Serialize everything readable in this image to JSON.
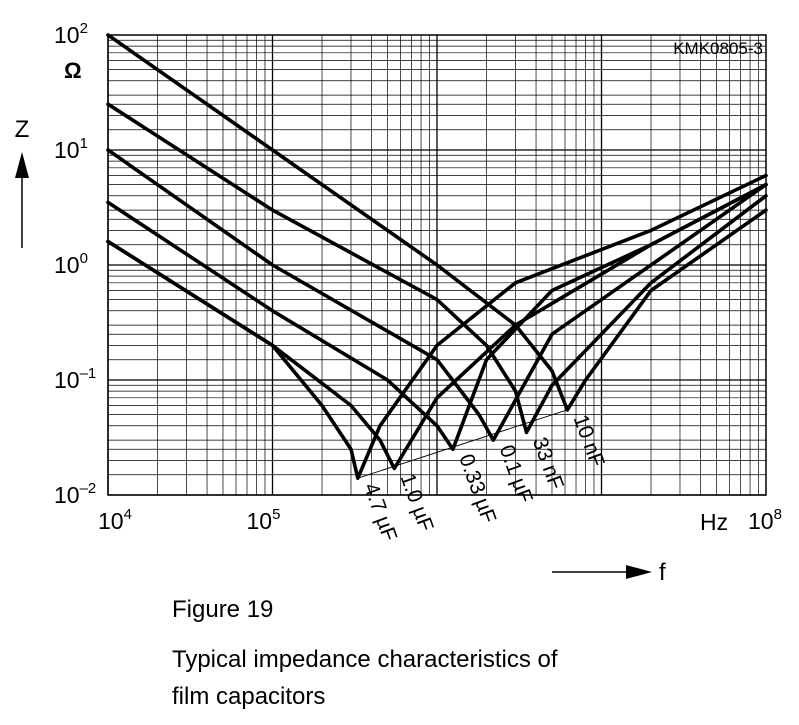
{
  "code": "KMK0805-3",
  "figure_number": "Figure 19",
  "figure_title_lines": [
    "Typical impedance characteristics of",
    "film capacitors"
  ],
  "chart_data": {
    "type": "line",
    "xscale": "log",
    "yscale": "log",
    "xlim": [
      10000,
      100000000
    ],
    "ylim": [
      0.01,
      100
    ],
    "x_unit": "Hz",
    "y_unit": "Ω",
    "ylabel": "Z",
    "xlabel": "f",
    "grid": true,
    "x_ticks": [
      {
        "base": "10",
        "exp": "4"
      },
      {
        "base": "10",
        "exp": "5"
      },
      {
        "base": "10",
        "exp": "8"
      }
    ],
    "y_ticks": [
      {
        "base": "10",
        "exp": "2"
      },
      {
        "base": "10",
        "exp": "1"
      },
      {
        "base": "10",
        "exp": "0"
      },
      {
        "base": "10",
        "exp": "–1"
      },
      {
        "base": "10",
        "exp": "–2"
      }
    ],
    "series": [
      {
        "name": "10 nF",
        "x": [
          10000,
          100000,
          1000000,
          3000000,
          5000000,
          6200000,
          8000000,
          20000000,
          100000000
        ],
        "y": [
          100,
          10,
          1,
          0.3,
          0.12,
          0.055,
          0.1,
          0.6,
          3
        ]
      },
      {
        "name": "33 nF",
        "x": [
          10000,
          100000,
          1000000,
          2000000,
          3000000,
          3500000,
          5000000,
          20000000,
          100000000
        ],
        "y": [
          25,
          3,
          0.5,
          0.2,
          0.08,
          0.035,
          0.09,
          0.7,
          4
        ]
      },
      {
        "name": "0.1 µF",
        "x": [
          10000,
          100000,
          1000000,
          1800000,
          2200000,
          5000000,
          20000000,
          100000000
        ],
        "y": [
          10,
          1,
          0.15,
          0.05,
          0.03,
          0.25,
          1,
          5
        ]
      },
      {
        "name": "0.33 µF",
        "x": [
          10000,
          100000,
          500000,
          1000000,
          1250000,
          2000000,
          5000000,
          20000000,
          100000000
        ],
        "y": [
          3.5,
          0.4,
          0.1,
          0.04,
          0.025,
          0.15,
          0.6,
          1.5,
          5
        ]
      },
      {
        "name": "1.0 µF",
        "x": [
          10000,
          100000,
          300000,
          450000,
          550000,
          1000000,
          3000000,
          20000000,
          100000000
        ],
        "y": [
          1.6,
          0.2,
          0.06,
          0.03,
          0.017,
          0.07,
          0.3,
          1.5,
          5
        ]
      },
      {
        "name": "4.7 µF",
        "x": [
          10000,
          100000,
          200000,
          300000,
          330000,
          450000,
          1000000,
          3000000,
          20000000,
          100000000
        ],
        "y": [
          1.6,
          0.2,
          0.06,
          0.025,
          0.014,
          0.04,
          0.2,
          0.7,
          2,
          6
        ]
      }
    ]
  }
}
